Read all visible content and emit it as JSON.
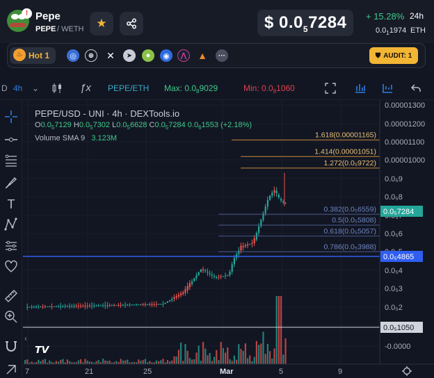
{
  "header": {
    "token_name": "Pepe",
    "pair_base": "PEPE",
    "pair_quote": " / WETH",
    "price_prefix": "$ 0.0",
    "price_sub": "5",
    "price_main": "7284",
    "change_pct": "+ 15.28%",
    "timeframe": "24h",
    "eth_price_prefix": "0.0",
    "eth_price_sub": "1",
    "eth_price_main": "1974",
    "eth_label": "ETH"
  },
  "social_bar": {
    "hot_label": "Hot 1",
    "audit_label": "AUDIT: 1",
    "icons": [
      "coinmarketcap-icon",
      "globe-icon",
      "x-twitter-icon",
      "telegram-icon",
      "coingecko-icon",
      "coinmarket-app-icon",
      "dex-app-icon",
      "metamask-icon",
      "more-icon"
    ]
  },
  "toolbar": {
    "interval_short": "D",
    "interval": "4h",
    "pair": "PEPE/ETH",
    "max_prefix": "Max: 0.0",
    "max_sub": "8",
    "max_main": "9029",
    "min_prefix": "Min: 0.0",
    "min_sub": "8",
    "min_main": "1060"
  },
  "legend": {
    "title": "PEPE/USD - UNI · 4h · DEXTools.io",
    "o_label": "O",
    "o_prefix": "0.0",
    "o_sub": "5",
    "o_main": "7129",
    "h_label": "H",
    "h_prefix": "0.0",
    "h_sub": "5",
    "h_main": "7302",
    "l_label": "L",
    "l_prefix": "0.0",
    "l_sub": "5",
    "l_main": "6628",
    "c_label": "C",
    "c_prefix": "0.0",
    "c_sub": "5",
    "c_main": "7284",
    "chg_prefix": "0.0",
    "chg_sub": "6",
    "chg_main": "1553",
    "chg_pct": "(+2.18%)",
    "volume_label": "Volume SMA 9",
    "volume_value": "3.123M"
  },
  "chart_data": {
    "type": "candlestick",
    "y_axis_ticks": [
      "0.00001300",
      "0.00001200",
      "0.00001100",
      "0.00001000",
      "0.0₅9",
      "0.0₅8",
      "0.0₅7",
      "0.0₅6",
      "0.0₅5",
      "0.0₅4",
      "0.0₅3",
      "0.0₅2",
      "0.0₅1",
      "-0.0000"
    ],
    "x_axis_ticks": [
      "7",
      "21",
      "25",
      "Mar",
      "5",
      "9"
    ],
    "price_marker": "0.0₅7284",
    "crosshair_marker": "0.0₅4865",
    "low_marker": "0.0₅1050",
    "fib_levels": [
      {
        "label": "1.618(0.00001165)",
        "value": 1.165e-05
      },
      {
        "label": "1.414(0.00001051)",
        "value": 1.051e-05
      },
      {
        "label": "1.272(0.0₅9722)",
        "value": 9.722e-06
      },
      {
        "label": "0.382(0.0₅6559)",
        "value": 6.559e-06
      },
      {
        "label": "0.5(0.0₅5808)",
        "value": 5.808e-06
      },
      {
        "label": "0.618(0.0₅5057)",
        "value": 5.057e-06
      },
      {
        "label": "0.786(0.0₅3988)",
        "value": 3.988e-06
      }
    ],
    "colors": {
      "up": "#26a69a",
      "down": "#ef5350",
      "fib_upper": "#c98a3a",
      "fib_lower": "#4a5a8a",
      "crosshair": "#2f5ef0"
    }
  }
}
